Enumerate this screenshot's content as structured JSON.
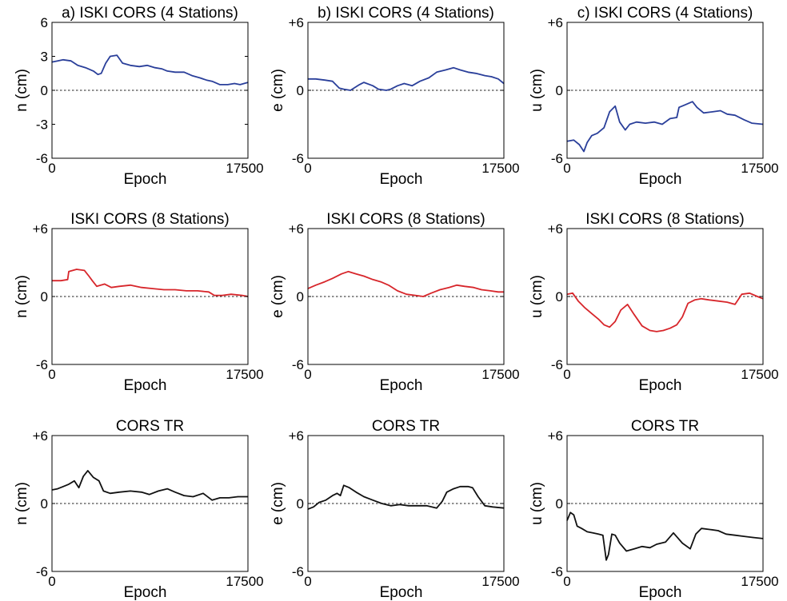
{
  "chart_data": [
    {
      "type": "line",
      "title": "a) ISKI CORS (4 Stations)",
      "xlabel": "Epoch",
      "ylabel": "n (cm)",
      "xlim": [
        0,
        17500
      ],
      "ylim": [
        -6,
        6
      ],
      "x_ticks": [
        "0",
        "17500"
      ],
      "y_ticks": [
        "6",
        "3",
        "0",
        "-3",
        "-6"
      ],
      "y_tick_values": [
        6,
        3,
        0,
        -3,
        -6
      ],
      "reference_line": 0,
      "color": "#2a3f9a",
      "series": [
        {
          "x": [
            0,
            500,
            1000,
            1700,
            2300,
            3000,
            3700,
            4100,
            4400,
            4800,
            5200,
            5800,
            6300,
            7000,
            7800,
            8500,
            9200,
            9800,
            10300,
            11000,
            11800,
            12500,
            13200,
            13800,
            14300,
            15000,
            15700,
            16300,
            16800,
            17500
          ],
          "y": [
            2.5,
            2.6,
            2.7,
            2.6,
            2.2,
            2.0,
            1.7,
            1.4,
            1.5,
            2.4,
            3.0,
            3.1,
            2.4,
            2.2,
            2.1,
            2.2,
            2.0,
            1.9,
            1.7,
            1.6,
            1.6,
            1.3,
            1.1,
            0.9,
            0.8,
            0.5,
            0.5,
            0.6,
            0.5,
            0.7
          ]
        }
      ]
    },
    {
      "type": "line",
      "title": "b) ISKI CORS (4 Stations)",
      "xlabel": "Epoch",
      "ylabel": "e (cm)",
      "xlim": [
        0,
        17500
      ],
      "ylim": [
        -6,
        6
      ],
      "x_ticks": [
        "0",
        "17500"
      ],
      "y_ticks": [
        "+6",
        "0",
        "-6"
      ],
      "y_tick_values": [
        6,
        0,
        -6
      ],
      "reference_line": 0,
      "color": "#2a3f9a",
      "series": [
        {
          "x": [
            0,
            700,
            1500,
            2200,
            2800,
            3200,
            3800,
            4600,
            5000,
            5800,
            6300,
            7000,
            7400,
            8000,
            8600,
            9300,
            10000,
            10800,
            11500,
            12300,
            13000,
            13600,
            14300,
            15000,
            15800,
            16400,
            17000,
            17500
          ],
          "y": [
            1.0,
            1.0,
            0.9,
            0.8,
            0.2,
            0.1,
            0.0,
            0.5,
            0.7,
            0.4,
            0.1,
            0.0,
            0.1,
            0.4,
            0.6,
            0.4,
            0.8,
            1.1,
            1.6,
            1.8,
            2.0,
            1.8,
            1.6,
            1.5,
            1.3,
            1.2,
            1.0,
            0.6
          ]
        }
      ]
    },
    {
      "type": "line",
      "title": "c) ISKI CORS (4 Stations)",
      "xlabel": "Epoch",
      "ylabel": "u (cm)",
      "xlim": [
        0,
        17500
      ],
      "ylim": [
        -6,
        6
      ],
      "x_ticks": [
        "0",
        "17500"
      ],
      "y_ticks": [
        "+6",
        "0",
        "-6"
      ],
      "y_tick_values": [
        6,
        0,
        -6
      ],
      "reference_line": 0,
      "color": "#2a3f9a",
      "series": [
        {
          "x": [
            0,
            600,
            1100,
            1500,
            1800,
            2200,
            2700,
            3300,
            3800,
            4300,
            4700,
            5200,
            5600,
            6200,
            7000,
            7800,
            8500,
            9200,
            9800,
            10000,
            10500,
            11200,
            11600,
            12200,
            13000,
            13700,
            14300,
            15000,
            15800,
            16500,
            17500
          ],
          "y": [
            -4.5,
            -4.4,
            -4.8,
            -5.4,
            -4.6,
            -4.0,
            -3.8,
            -3.3,
            -1.9,
            -1.4,
            -2.8,
            -3.5,
            -3.0,
            -2.8,
            -2.9,
            -2.8,
            -3.0,
            -2.5,
            -2.4,
            -1.5,
            -1.3,
            -1.0,
            -1.5,
            -2.0,
            -1.9,
            -1.8,
            -2.1,
            -2.2,
            -2.6,
            -2.9,
            -3.0
          ]
        }
      ]
    },
    {
      "type": "line",
      "title": "ISKI CORS (8 Stations)",
      "xlabel": "Epoch",
      "ylabel": "n (cm)",
      "xlim": [
        0,
        17500
      ],
      "ylim": [
        -6,
        6
      ],
      "x_ticks": [
        "0",
        "17500"
      ],
      "y_ticks": [
        "+6",
        "0",
        "-6"
      ],
      "y_tick_values": [
        6,
        0,
        -6
      ],
      "reference_line": 0,
      "color": "#d7262b",
      "series": [
        {
          "x": [
            0,
            800,
            1400,
            1500,
            2200,
            2900,
            3300,
            3600,
            4000,
            4700,
            5300,
            6000,
            7000,
            8000,
            9000,
            10000,
            11000,
            12000,
            13000,
            14000,
            14500,
            15200,
            16000,
            17000,
            17500
          ],
          "y": [
            1.4,
            1.4,
            1.5,
            2.2,
            2.4,
            2.3,
            1.8,
            1.4,
            0.9,
            1.1,
            0.8,
            0.9,
            1.0,
            0.8,
            0.7,
            0.6,
            0.6,
            0.5,
            0.5,
            0.4,
            0.1,
            0.1,
            0.2,
            0.1,
            0.0
          ]
        }
      ]
    },
    {
      "type": "line",
      "title": "ISKI CORS (8 Stations)",
      "xlabel": "Epoch",
      "ylabel": "e (cm)",
      "xlim": [
        0,
        17500
      ],
      "ylim": [
        -6,
        6
      ],
      "x_ticks": [
        "0",
        "17500"
      ],
      "y_ticks": [
        "+6",
        "0",
        "-6"
      ],
      "y_tick_values": [
        6,
        0,
        -6
      ],
      "reference_line": 0,
      "color": "#d7262b",
      "series": [
        {
          "x": [
            0,
            700,
            1500,
            2200,
            3000,
            3600,
            4300,
            5000,
            5800,
            6500,
            7200,
            8000,
            8800,
            9600,
            10300,
            11000,
            11800,
            12600,
            13300,
            14000,
            14800,
            15500,
            16300,
            17000,
            17500
          ],
          "y": [
            0.7,
            1.0,
            1.3,
            1.6,
            2.0,
            2.2,
            2.0,
            1.8,
            1.5,
            1.3,
            1.0,
            0.5,
            0.2,
            0.1,
            0.0,
            0.3,
            0.6,
            0.8,
            1.0,
            0.9,
            0.8,
            0.6,
            0.5,
            0.4,
            0.4
          ]
        }
      ]
    },
    {
      "type": "line",
      "title": "ISKI CORS (8 Stations)",
      "xlabel": "Epoch",
      "ylabel": "u (cm)",
      "xlim": [
        0,
        17500
      ],
      "ylim": [
        -6,
        6
      ],
      "x_ticks": [
        "0",
        "17500"
      ],
      "y_ticks": [
        "+6",
        "0",
        "-6"
      ],
      "y_tick_values": [
        6,
        0,
        -6
      ],
      "reference_line": 0,
      "color": "#d7262b",
      "series": [
        {
          "x": [
            0,
            500,
            1000,
            1600,
            2200,
            2800,
            3300,
            3800,
            4300,
            4800,
            5400,
            6000,
            6700,
            7400,
            8000,
            8600,
            9200,
            9800,
            10300,
            10800,
            11400,
            12000,
            12700,
            13500,
            14300,
            15000,
            15600,
            16300,
            17000,
            17500
          ],
          "y": [
            0.2,
            0.3,
            -0.4,
            -1.0,
            -1.5,
            -2.0,
            -2.5,
            -2.7,
            -2.2,
            -1.2,
            -0.7,
            -1.6,
            -2.6,
            -3.0,
            -3.1,
            -3.0,
            -2.8,
            -2.5,
            -1.8,
            -0.6,
            -0.3,
            -0.2,
            -0.3,
            -0.4,
            -0.5,
            -0.7,
            0.2,
            0.3,
            0.0,
            -0.2
          ]
        }
      ]
    },
    {
      "type": "line",
      "title": "CORS TR",
      "xlabel": "Epoch",
      "ylabel": "n (cm)",
      "xlim": [
        0,
        17500
      ],
      "ylim": [
        -6,
        6
      ],
      "x_ticks": [
        "0",
        "17500"
      ],
      "y_ticks": [
        "+6",
        "0",
        "-6"
      ],
      "y_tick_values": [
        6,
        0,
        -6
      ],
      "reference_line": 0,
      "color": "#111111",
      "series": [
        {
          "x": [
            0,
            500,
            1000,
            1500,
            2000,
            2400,
            2800,
            3200,
            3700,
            4200,
            4600,
            5200,
            6000,
            7000,
            8000,
            8700,
            9500,
            10300,
            11000,
            11800,
            12600,
            13500,
            14300,
            15000,
            15800,
            16600,
            17500
          ],
          "y": [
            1.2,
            1.3,
            1.5,
            1.7,
            2.0,
            1.4,
            2.4,
            2.9,
            2.3,
            2.0,
            1.1,
            0.9,
            1.0,
            1.1,
            1.0,
            0.8,
            1.1,
            1.3,
            1.0,
            0.7,
            0.6,
            0.9,
            0.3,
            0.5,
            0.5,
            0.6,
            0.6
          ]
        }
      ]
    },
    {
      "type": "line",
      "title": "CORS TR",
      "xlabel": "Epoch",
      "ylabel": "e (cm)",
      "xlim": [
        0,
        17500
      ],
      "ylim": [
        -6,
        6
      ],
      "x_ticks": [
        "0",
        "17500"
      ],
      "y_ticks": [
        "+6",
        "0",
        "-6"
      ],
      "y_tick_values": [
        6,
        0,
        -6
      ],
      "reference_line": 0,
      "color": "#111111",
      "series": [
        {
          "x": [
            0,
            500,
            1000,
            1600,
            2200,
            2600,
            2900,
            3200,
            3700,
            4300,
            5000,
            5800,
            6600,
            7400,
            8200,
            9000,
            9800,
            10600,
            11500,
            12000,
            12400,
            13000,
            13600,
            14300,
            14700,
            15200,
            15800,
            16500,
            17500
          ],
          "y": [
            -0.5,
            -0.3,
            0.1,
            0.3,
            0.7,
            0.9,
            0.7,
            1.6,
            1.4,
            1.0,
            0.6,
            0.3,
            0.0,
            -0.2,
            -0.1,
            -0.2,
            -0.2,
            -0.2,
            -0.4,
            0.2,
            1.0,
            1.3,
            1.5,
            1.5,
            1.4,
            0.6,
            -0.2,
            -0.3,
            -0.4
          ]
        }
      ]
    },
    {
      "type": "line",
      "title": "CORS TR",
      "xlabel": "Epoch",
      "ylabel": "u (cm)",
      "xlim": [
        0,
        17500
      ],
      "ylim": [
        -6,
        6
      ],
      "x_ticks": [
        "0",
        "17500"
      ],
      "y_ticks": [
        "+6",
        "0",
        "-6"
      ],
      "y_tick_values": [
        6,
        0,
        -6
      ],
      "reference_line": 0,
      "color": "#111111",
      "series": [
        {
          "x": [
            0,
            300,
            600,
            900,
            1300,
            1800,
            2300,
            2800,
            3200,
            3500,
            3700,
            4000,
            4300,
            4700,
            5300,
            6000,
            6700,
            7400,
            8000,
            8800,
            9500,
            10300,
            11000,
            11500,
            12000,
            12800,
            13500,
            14200,
            15000,
            15800,
            16600,
            17500
          ],
          "y": [
            -1.5,
            -0.8,
            -1.0,
            -2.0,
            -2.2,
            -2.5,
            -2.6,
            -2.7,
            -2.8,
            -5.0,
            -4.5,
            -2.7,
            -2.8,
            -3.5,
            -4.2,
            -4.0,
            -3.8,
            -3.9,
            -3.6,
            -3.4,
            -2.6,
            -3.5,
            -4.0,
            -2.7,
            -2.2,
            -2.3,
            -2.4,
            -2.7,
            -2.8,
            -2.9,
            -3.0,
            -3.1
          ]
        }
      ]
    }
  ]
}
